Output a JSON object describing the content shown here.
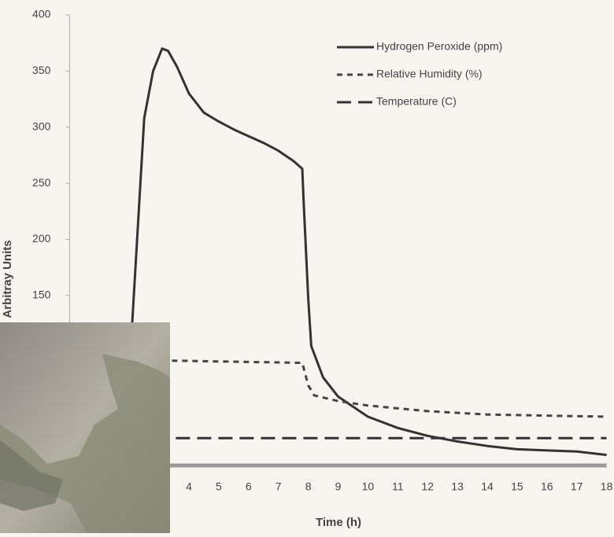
{
  "chart_data": {
    "type": "line",
    "x_label": "Time (h)",
    "y_label": "Arbitray Units",
    "xlim": [
      0,
      18
    ],
    "xticks": [
      4,
      5,
      6,
      7,
      8,
      9,
      10,
      11,
      12,
      13,
      14,
      15,
      16,
      17,
      18
    ],
    "ylim": [
      0,
      400
    ],
    "yticks": [
      150,
      200,
      250,
      300,
      350,
      400
    ],
    "legend": "top-right",
    "series": [
      {
        "name": "Hydrogen Peroxide (ppm)",
        "color": "#333333",
        "line_style": "solid",
        "x": [
          2.05,
          2.1,
          2.3,
          2.5,
          2.8,
          3.1,
          3.3,
          3.6,
          4,
          4.5,
          5,
          5.5,
          6,
          6.5,
          7,
          7.5,
          7.8,
          7.85,
          8,
          8.1,
          8.5,
          9,
          10,
          11,
          12,
          13,
          14,
          15,
          16,
          17,
          18
        ],
        "values": [
          60,
          126,
          217,
          308,
          350,
          370,
          368,
          354,
          330,
          313,
          305,
          298,
          292,
          286,
          279,
          270,
          263,
          231,
          147,
          105,
          77,
          60,
          42,
          32,
          25,
          20,
          16,
          13,
          12,
          11,
          8
        ]
      },
      {
        "name": "Relative Humidity (%)",
        "color": "#444444",
        "line_style": "short",
        "x": [
          0,
          3.4,
          7.8,
          8,
          8.2,
          9,
          10,
          12,
          14,
          18
        ],
        "values": [
          92,
          92,
          90,
          70,
          61,
          56,
          52,
          47,
          44,
          42
        ]
      },
      {
        "name": "Temperature (C)",
        "color": "#333333",
        "line_style": "long",
        "x": [
          0,
          18
        ],
        "values": [
          23,
          23
        ]
      }
    ]
  }
}
